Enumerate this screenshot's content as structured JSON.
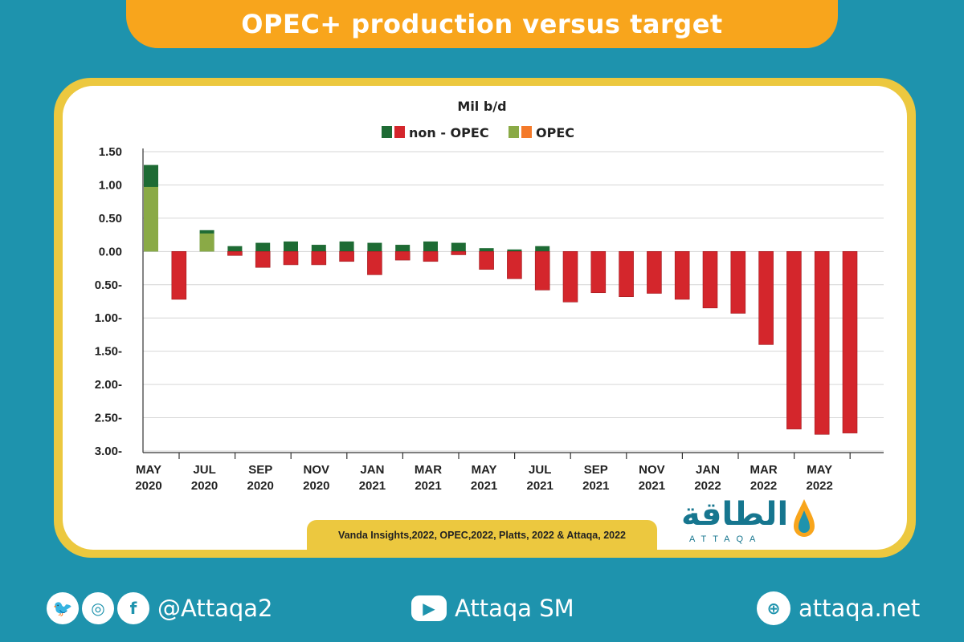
{
  "header": {
    "title": "OPEC+ production versus target"
  },
  "chart_data": {
    "type": "bar",
    "ylabel": "Mil b/d",
    "y_ticks": [
      "1.50",
      "1.00",
      "0.50",
      "0.00",
      "0.50-",
      "1.00-",
      "1.50-",
      "2.00-",
      "2.50-",
      "3.00-"
    ],
    "ylim": [
      -3.0,
      1.5
    ],
    "legend": [
      {
        "label": "non - OPEC",
        "colors": [
          "#1e6b34",
          "#d4262c"
        ]
      },
      {
        "label": "OPEC",
        "colors": [
          "#8aaa46",
          "#f47a2a"
        ]
      }
    ],
    "legend_position": "top-center",
    "grid": true,
    "x_ticks": [
      {
        "month": "MAY",
        "year": "2020"
      },
      {
        "month": "JUL",
        "year": "2020"
      },
      {
        "month": "SEP",
        "year": "2020"
      },
      {
        "month": "NOV",
        "year": "2020"
      },
      {
        "month": "JAN",
        "year": "2021"
      },
      {
        "month": "MAR",
        "year": "2021"
      },
      {
        "month": "MAY",
        "year": "2021"
      },
      {
        "month": "JUL",
        "year": "2021"
      },
      {
        "month": "SEP",
        "year": "2021"
      },
      {
        "month": "NOV",
        "year": "2021"
      },
      {
        "month": "JAN",
        "year": "2022"
      },
      {
        "month": "MAR",
        "year": "2022"
      },
      {
        "month": "MAY",
        "year": "2022"
      }
    ],
    "categories": [
      "May 2020",
      "Jun 2020",
      "Jul 2020",
      "Aug 2020",
      "Sep 2020",
      "Oct 2020",
      "Nov 2020",
      "Dec 2020",
      "Jan 2021",
      "Feb 2021",
      "Mar 2021",
      "Apr 2021",
      "May 2021",
      "Jun 2021",
      "Jul 2021",
      "Aug 2021",
      "Sep 2021",
      "Oct 2021",
      "Nov 2021",
      "Dec 2021",
      "Jan 2022",
      "Feb 2022",
      "Mar 2022",
      "Apr 2022",
      "May 2022",
      "Jun 2022"
    ],
    "values": [
      1.3,
      -0.72,
      0.32,
      0.08,
      0.13,
      0.15,
      0.1,
      0.15,
      0.13,
      0.1,
      0.15,
      0.13,
      0.05,
      0.03,
      0.08,
      -0.76,
      -0.62,
      -0.68,
      -0.63,
      -0.72,
      -0.85,
      -0.93,
      -1.4,
      -2.67,
      -2.75,
      -2.73
    ],
    "negative_parts": [
      0,
      0,
      0,
      -0.06,
      -0.24,
      -0.2,
      -0.2,
      -0.15,
      -0.35,
      -0.13,
      -0.15,
      -0.05,
      -0.27,
      -0.41,
      -0.58,
      0,
      0,
      0,
      0,
      0,
      0,
      0,
      0,
      0,
      0,
      0
    ],
    "opec_share": [
      0.97,
      0,
      0.27,
      0,
      0,
      0,
      0,
      0,
      0,
      0,
      0,
      0,
      0,
      0,
      0,
      0,
      0,
      0,
      0,
      0,
      0,
      0,
      0,
      0,
      0,
      0
    ]
  },
  "source_note": "Vanda Insights,2022, OPEC,2022, Platts, 2022 & Attaqa, 2022",
  "logo": {
    "text": "الطاقة",
    "sub": "ATTAQA"
  },
  "footer": {
    "social_handle": "@Attaqa2",
    "youtube": "Attaqa SM",
    "website": "attaqa.net"
  },
  "colors": {
    "background": "#1e93ad",
    "banner": "#f8a51c",
    "frame": "#ecc83f"
  }
}
